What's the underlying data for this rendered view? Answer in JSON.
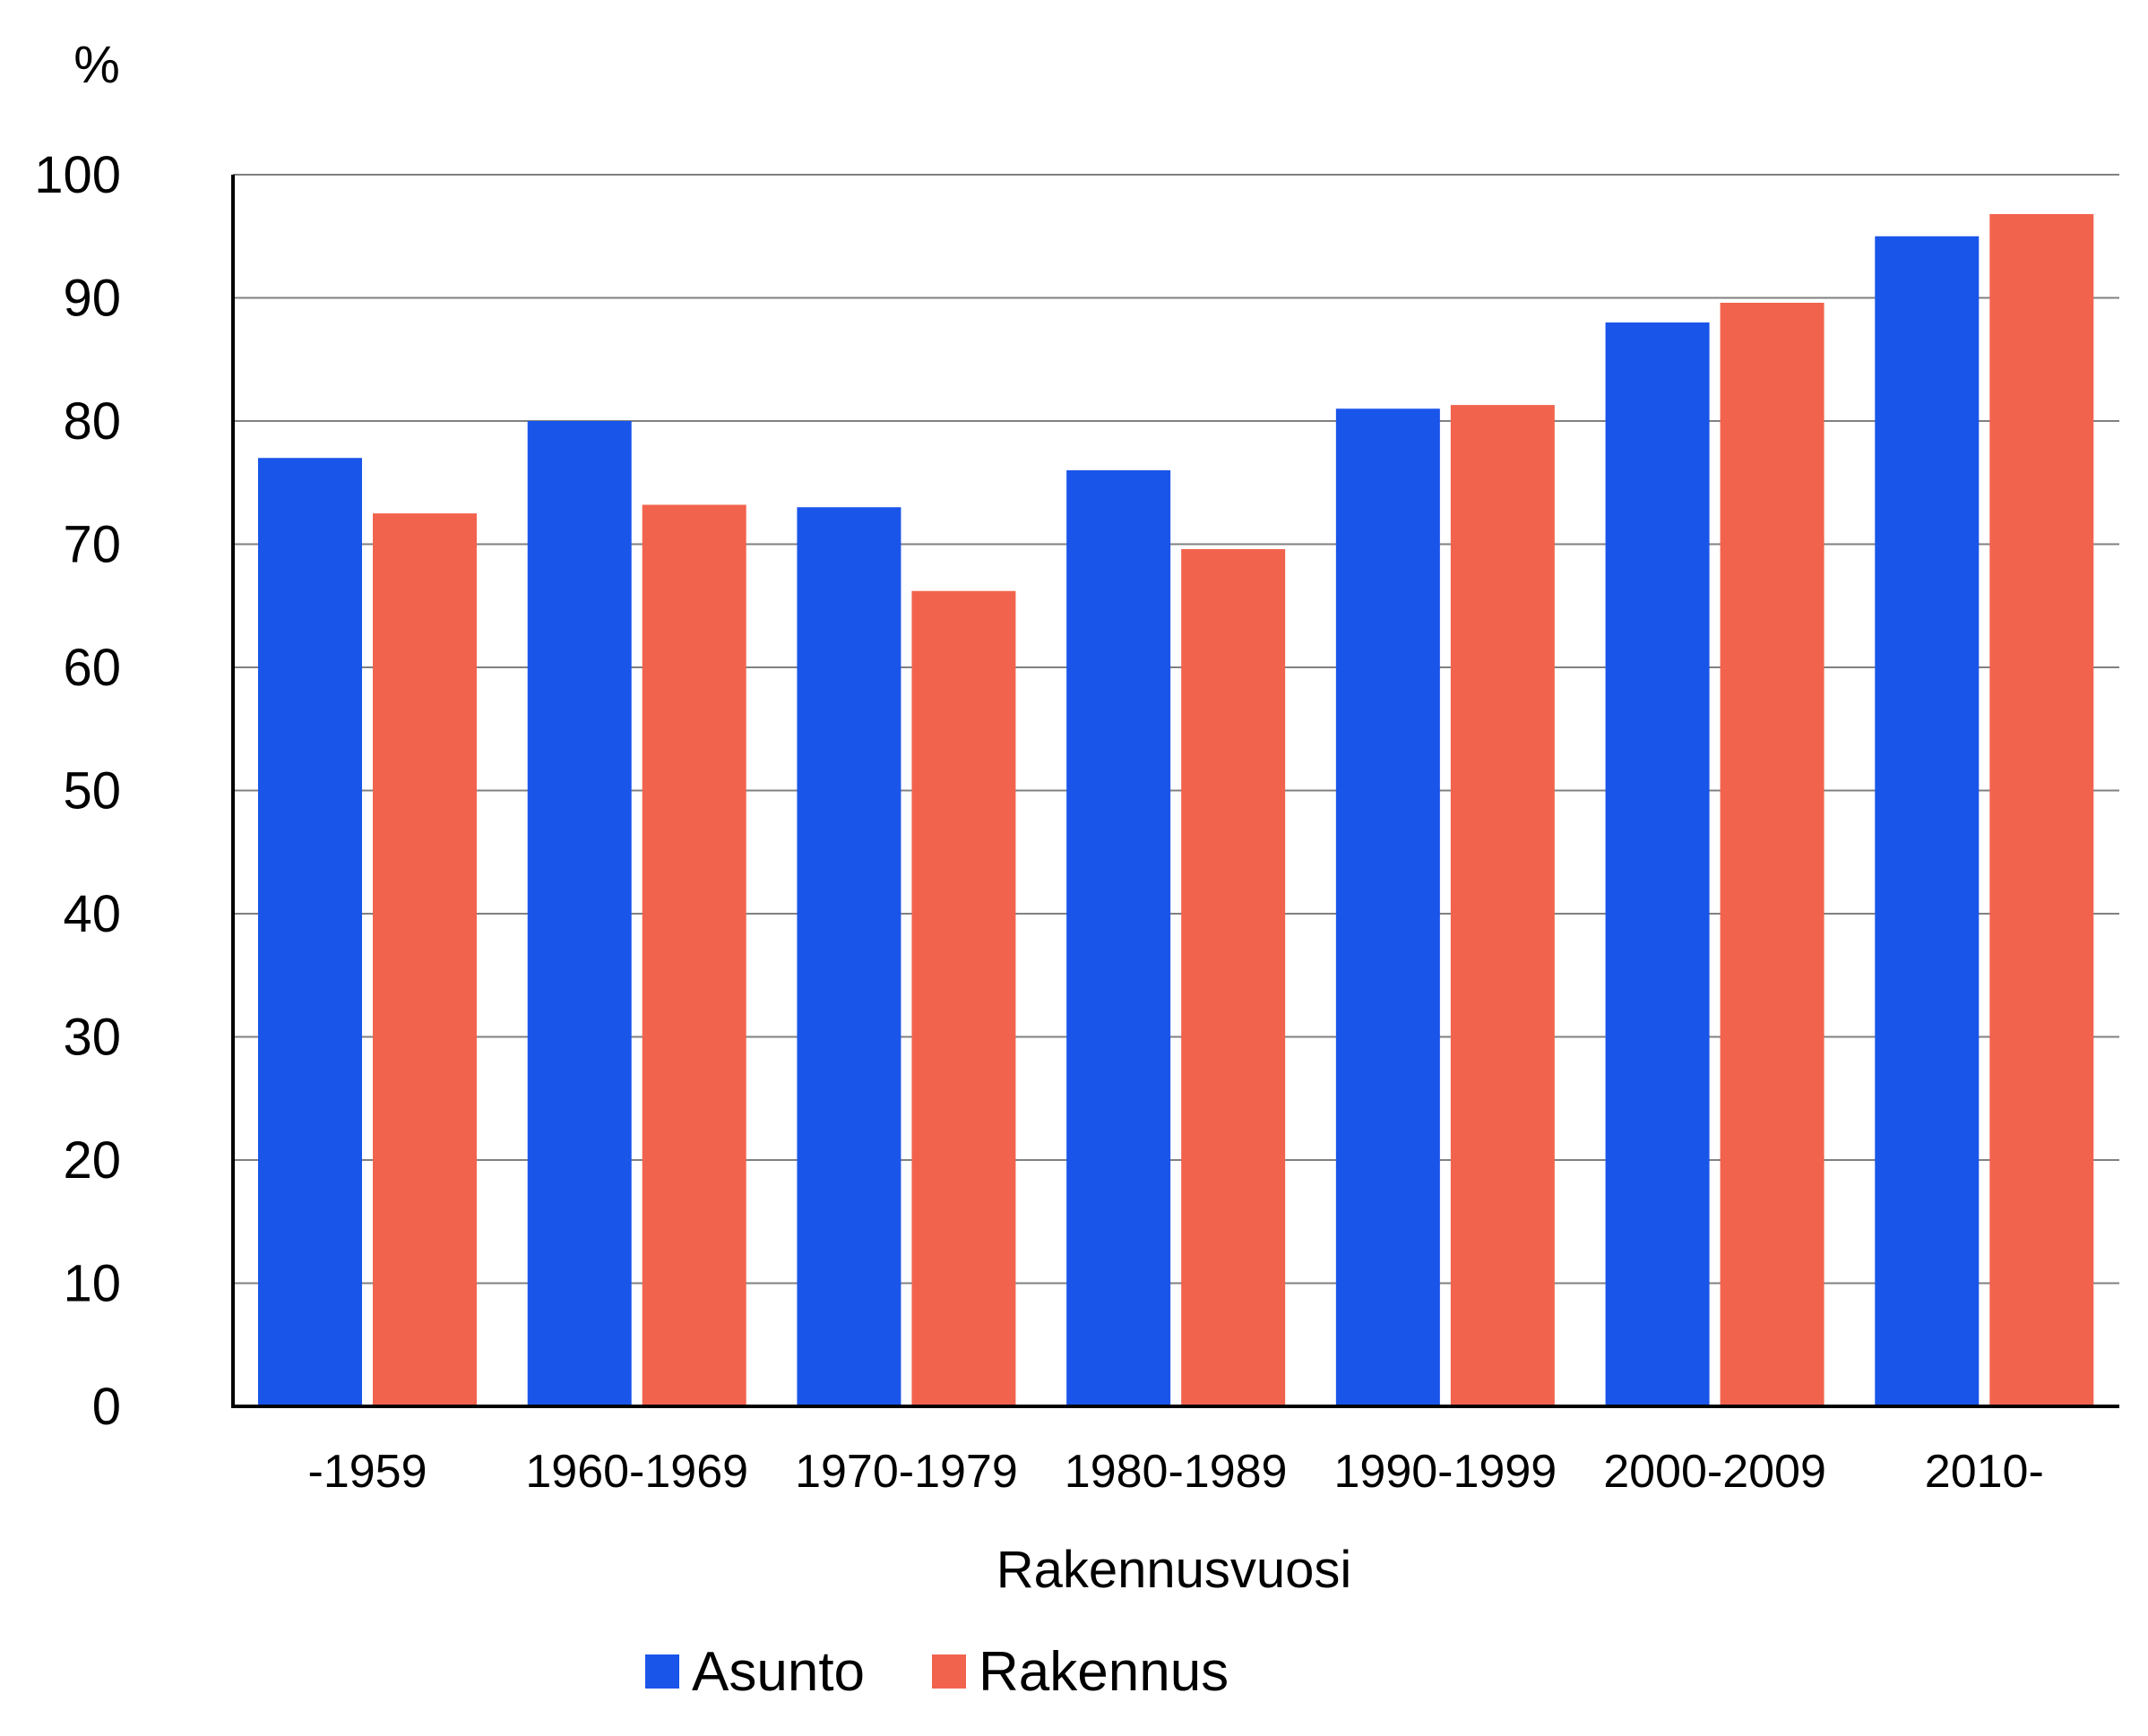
{
  "chart_data": {
    "type": "bar",
    "title": "",
    "ylabel": "%",
    "xlabel": "Rakennusvuosi",
    "ylim": [
      0,
      100
    ],
    "yticks": [
      0,
      10,
      20,
      30,
      40,
      50,
      60,
      70,
      80,
      90,
      100
    ],
    "grid": true,
    "legend_position": "bottom",
    "categories": [
      "-1959",
      "1960-1969",
      "1970-1979",
      "1980-1989",
      "1990-1999",
      "2000-2009",
      "2010-"
    ],
    "series": [
      {
        "name": "Asunto",
        "color": "#1a55ea",
        "values": [
          77,
          80,
          73,
          76,
          81,
          88,
          95
        ]
      },
      {
        "name": "Rakennus",
        "color": "#f2634e",
        "values": [
          72.5,
          73.2,
          66.2,
          69.6,
          81.3,
          89.6,
          96.8
        ]
      }
    ]
  }
}
